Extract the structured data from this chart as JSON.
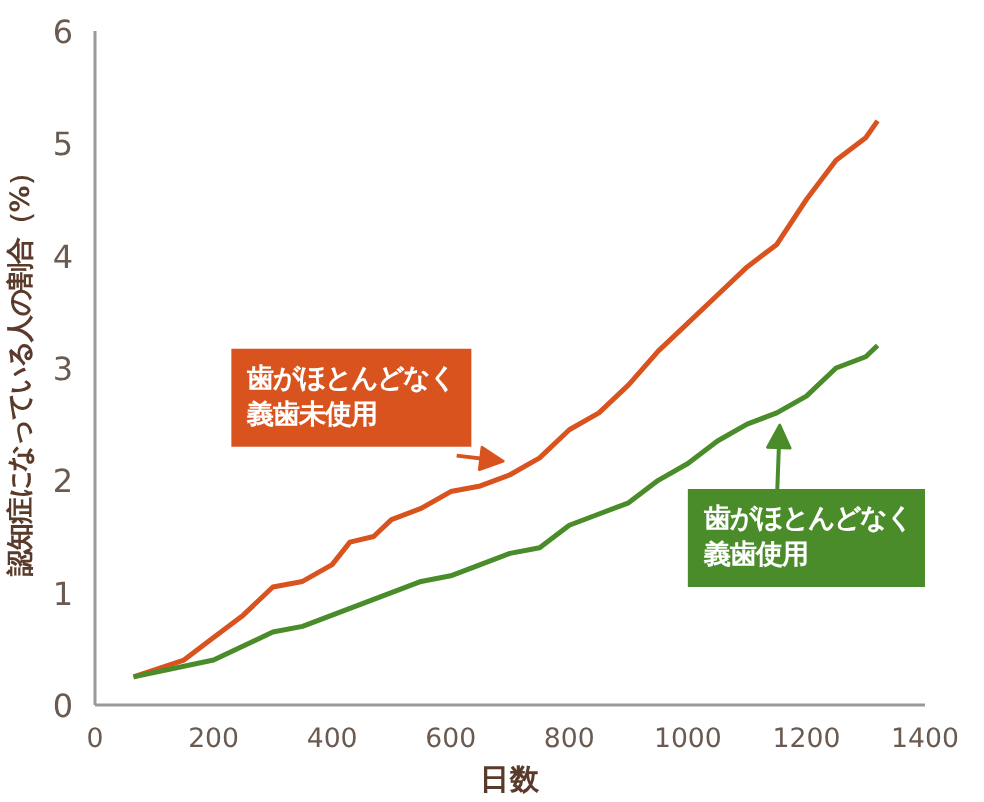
{
  "chart_data": {
    "type": "line",
    "xlabel": "日数",
    "ylabel": "認知症になっている人の割合（%）",
    "xlim": [
      0,
      1400
    ],
    "xticks": [
      0,
      200,
      400,
      600,
      800,
      1000,
      1200,
      1400
    ],
    "ylim": [
      0,
      6
    ],
    "yticks": [
      0,
      1,
      2,
      3,
      4,
      5,
      6
    ],
    "grid": false,
    "marker": "none",
    "line_style": "solid",
    "series": [
      {
        "name": "歯がほとんどなく義歯未使用",
        "color": "#d9531e",
        "x": [
          65,
          150,
          200,
          250,
          300,
          350,
          400,
          430,
          470,
          500,
          550,
          600,
          650,
          700,
          750,
          800,
          850,
          900,
          950,
          1000,
          1050,
          1100,
          1150,
          1200,
          1250,
          1300,
          1320
        ],
        "values": [
          0.25,
          0.4,
          0.6,
          0.8,
          1.05,
          1.1,
          1.25,
          1.45,
          1.5,
          1.65,
          1.75,
          1.9,
          1.95,
          2.05,
          2.2,
          2.45,
          2.6,
          2.85,
          3.15,
          3.4,
          3.65,
          3.9,
          4.1,
          4.5,
          4.85,
          5.05,
          5.2
        ]
      },
      {
        "name": "歯がほとんどなく義歯使用",
        "color": "#4a8c2a",
        "x": [
          65,
          200,
          300,
          350,
          400,
          450,
          500,
          550,
          600,
          650,
          700,
          750,
          800,
          850,
          900,
          950,
          1000,
          1050,
          1100,
          1150,
          1200,
          1250,
          1300,
          1320
        ],
        "values": [
          0.25,
          0.4,
          0.65,
          0.7,
          0.8,
          0.9,
          1.0,
          1.1,
          1.15,
          1.25,
          1.35,
          1.4,
          1.6,
          1.7,
          1.8,
          2.0,
          2.15,
          2.35,
          2.5,
          2.6,
          2.75,
          3.0,
          3.1,
          3.2
        ]
      }
    ]
  }
}
